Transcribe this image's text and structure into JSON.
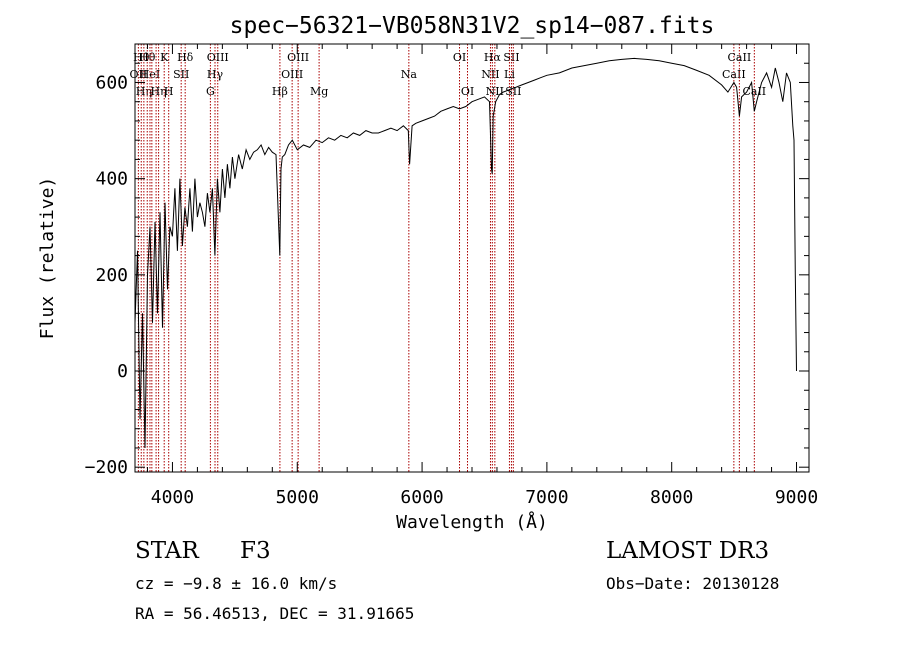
{
  "chart_data": {
    "type": "line",
    "title": "spec−56321−VB058N31V2_sp14−087.fits",
    "xlabel": "Wavelength (Å)",
    "ylabel": "Flux (relative)",
    "xlim": [
      3700,
      9100
    ],
    "ylim": [
      -210,
      680
    ],
    "xticks": [
      4000,
      5000,
      6000,
      7000,
      8000,
      9000
    ],
    "yticks": [
      -200,
      0,
      200,
      400,
      600
    ],
    "xtick_labels": [
      "4000",
      "5000",
      "6000",
      "7000",
      "8000",
      "9000"
    ],
    "ytick_labels": [
      "−200",
      "0",
      "200",
      "400",
      "600"
    ],
    "series": [
      {
        "name": "flux",
        "x": [
          3700,
          3720,
          3740,
          3760,
          3780,
          3800,
          3820,
          3840,
          3860,
          3880,
          3900,
          3920,
          3940,
          3960,
          3980,
          4000,
          4020,
          4040,
          4060,
          4080,
          4100,
          4120,
          4140,
          4160,
          4180,
          4200,
          4220,
          4240,
          4260,
          4280,
          4300,
          4320,
          4340,
          4360,
          4380,
          4400,
          4420,
          4440,
          4460,
          4480,
          4500,
          4530,
          4560,
          4590,
          4620,
          4650,
          4680,
          4710,
          4740,
          4770,
          4800,
          4830,
          4860,
          4870,
          4880,
          4900,
          4930,
          4960,
          5000,
          5050,
          5100,
          5150,
          5200,
          5250,
          5300,
          5350,
          5400,
          5450,
          5500,
          5550,
          5600,
          5650,
          5700,
          5750,
          5800,
          5850,
          5890,
          5900,
          5920,
          5950,
          6000,
          6050,
          6100,
          6150,
          6200,
          6250,
          6300,
          6350,
          6400,
          6450,
          6500,
          6540,
          6556,
          6562,
          6570,
          6590,
          6620,
          6650,
          6700,
          6750,
          6800,
          6850,
          6900,
          6950,
          7000,
          7100,
          7200,
          7300,
          7400,
          7500,
          7600,
          7700,
          7800,
          7900,
          8000,
          8100,
          8200,
          8300,
          8400,
          8450,
          8498,
          8520,
          8542,
          8560,
          8600,
          8640,
          8662,
          8680,
          8720,
          8760,
          8800,
          8830,
          8860,
          8890,
          8920,
          8950,
          8970,
          8980,
          8990,
          9000
        ],
        "y": [
          100,
          250,
          -100,
          120,
          -160,
          200,
          300,
          100,
          310,
          120,
          330,
          90,
          350,
          170,
          300,
          280,
          380,
          250,
          400,
          260,
          340,
          300,
          380,
          290,
          400,
          320,
          350,
          330,
          300,
          370,
          330,
          380,
          240,
          400,
          330,
          420,
          360,
          430,
          380,
          445,
          400,
          450,
          420,
          460,
          440,
          455,
          460,
          470,
          450,
          465,
          455,
          450,
          240,
          420,
          445,
          450,
          470,
          480,
          460,
          470,
          465,
          480,
          475,
          485,
          480,
          490,
          485,
          495,
          490,
          500,
          495,
          495,
          500,
          505,
          500,
          510,
          500,
          430,
          510,
          515,
          520,
          525,
          530,
          540,
          545,
          550,
          545,
          550,
          560,
          565,
          570,
          560,
          420,
          410,
          530,
          560,
          575,
          580,
          585,
          590,
          595,
          600,
          605,
          610,
          615,
          620,
          630,
          635,
          640,
          645,
          648,
          650,
          648,
          645,
          640,
          635,
          625,
          615,
          595,
          580,
          600,
          590,
          530,
          570,
          580,
          600,
          540,
          560,
          600,
          620,
          590,
          630,
          600,
          560,
          620,
          600,
          510,
          480,
          200,
          0
        ]
      }
    ],
    "lines": [
      {
        "x": 3727,
        "label": "OII",
        "row": 2
      },
      {
        "x": 3750,
        "label": "Hθ",
        "row": 1
      },
      {
        "x": 3771,
        "label": "Hη",
        "row": 3
      },
      {
        "x": 3798,
        "label": "Hθ",
        "row": 1
      },
      {
        "x": 3820,
        "label": "HeI",
        "row": 2
      },
      {
        "x": 3835,
        "label": "",
        "row": 1
      },
      {
        "x": 3869,
        "label": "",
        "row": 2
      },
      {
        "x": 3889,
        "label": "Hη",
        "row": 3
      },
      {
        "x": 3934,
        "label": "K",
        "row": 1
      },
      {
        "x": 3970,
        "label": "H",
        "row": 3
      },
      {
        "x": 4070,
        "label": "SII",
        "row": 2
      },
      {
        "x": 4102,
        "label": "Hδ",
        "row": 1
      },
      {
        "x": 4304,
        "label": "G",
        "row": 3
      },
      {
        "x": 4341,
        "label": "Hγ",
        "row": 2
      },
      {
        "x": 4363,
        "label": "OIII",
        "row": 1
      },
      {
        "x": 4861,
        "label": "Hβ",
        "row": 3
      },
      {
        "x": 4959,
        "label": "OIII",
        "row": 2
      },
      {
        "x": 5007,
        "label": "OIII",
        "row": 1
      },
      {
        "x": 5175,
        "label": "Mg",
        "row": 3
      },
      {
        "x": 5894,
        "label": "Na",
        "row": 2
      },
      {
        "x": 6300,
        "label": "OI",
        "row": 1
      },
      {
        "x": 6364,
        "label": "OI",
        "row": 3
      },
      {
        "x": 6548,
        "label": "NII",
        "row": 2
      },
      {
        "x": 6563,
        "label": "Hα",
        "row": 1
      },
      {
        "x": 6583,
        "label": "NII",
        "row": 3
      },
      {
        "x": 6716,
        "label": "SII",
        "row": 1
      },
      {
        "x": 6731,
        "label": "SII",
        "row": 3
      },
      {
        "x": 6700,
        "label": "Li",
        "row": 2
      },
      {
        "x": 8498,
        "label": "CaII",
        "row": 2
      },
      {
        "x": 8542,
        "label": "CaII",
        "row": 1
      },
      {
        "x": 8662,
        "label": "CaII",
        "row": 3
      }
    ],
    "grid": false
  },
  "info": {
    "object_class": "STAR",
    "subclass": "F3",
    "survey": "LAMOST DR3",
    "cz": "cz = −9.8 ± 16.0 km/s",
    "obs_date": "Obs−Date: 20130128",
    "coords": "RA =  56.46513, DEC =  31.91665"
  },
  "colors": {
    "spectrum": "#000000",
    "line_markers": "#aa0000",
    "axes": "#000000"
  }
}
